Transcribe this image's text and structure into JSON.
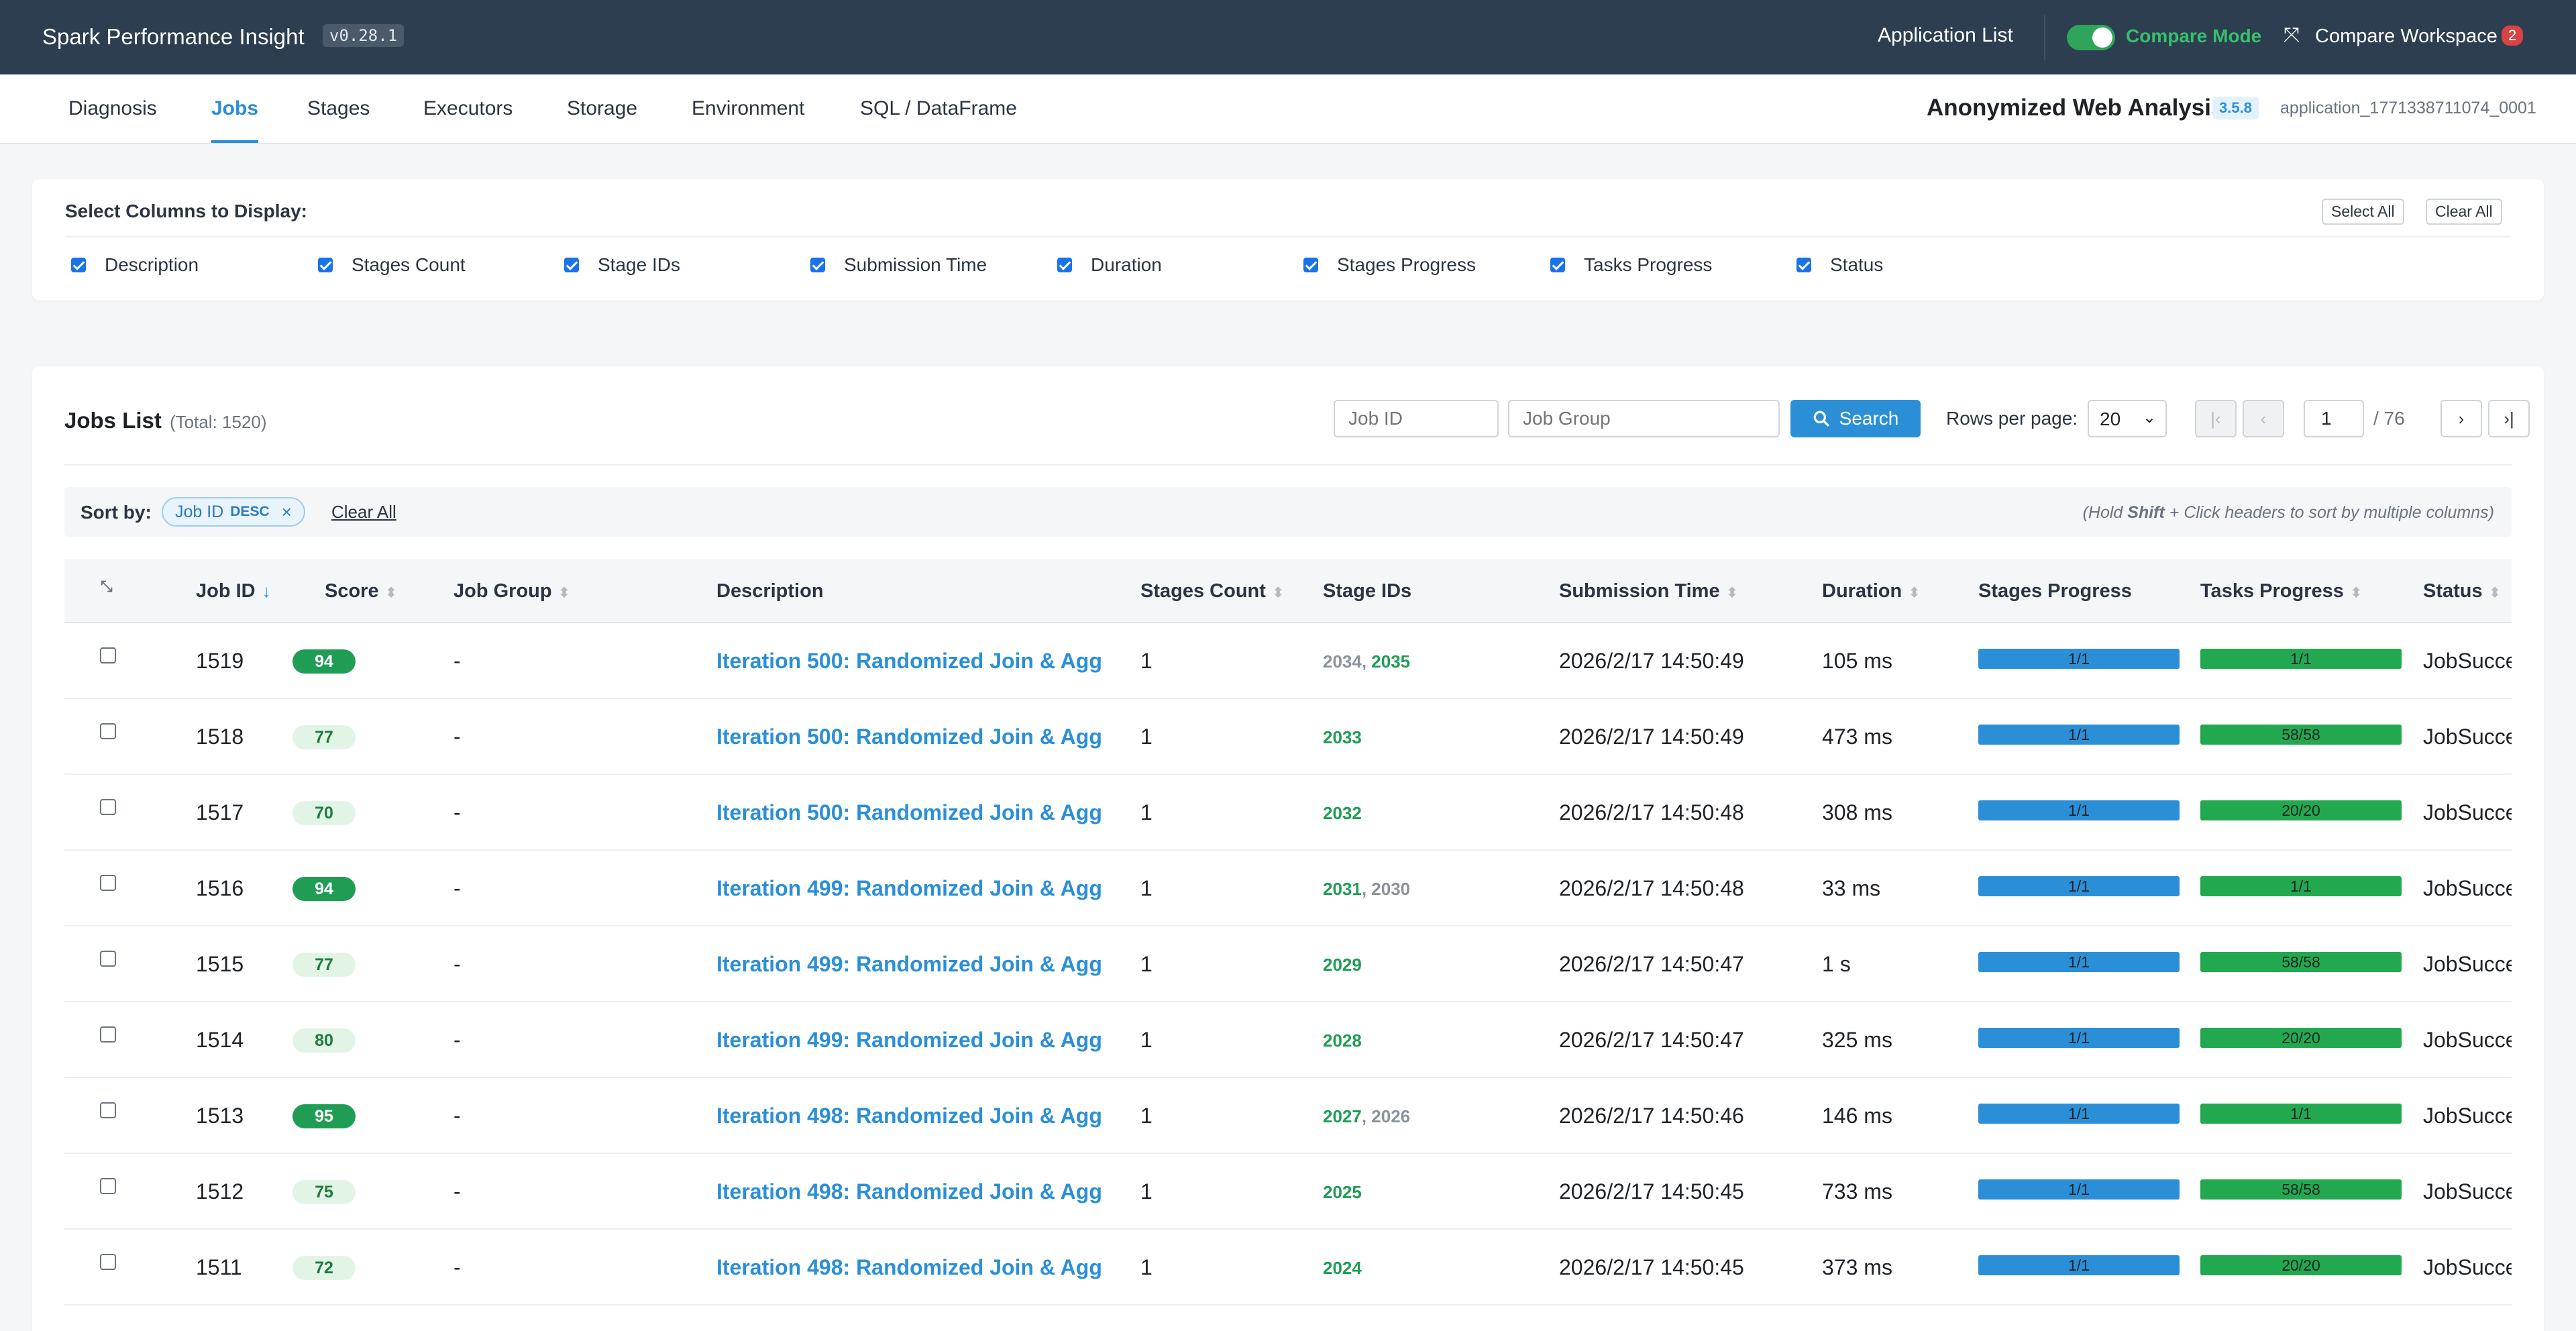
{
  "topbar": {
    "brand": "Spark Performance Insight",
    "version": "v0.28.1",
    "app_list": "Application List",
    "compare_mode": "Compare Mode",
    "compare_workspace": "Compare Workspace",
    "compare_workspace_count": "2",
    "compare_mode_on": true
  },
  "nav": {
    "tabs": [
      "Diagnosis",
      "Jobs",
      "Stages",
      "Executors",
      "Storage",
      "Environment",
      "SQL / DataFrame"
    ],
    "active": "Jobs",
    "app_name": "Anonymized Web Analysis",
    "spark_version": "3.5.8",
    "app_id": "application_1771338711074_0001"
  },
  "columns_panel": {
    "title": "Select Columns to Display:",
    "select_all": "Select All",
    "clear_all": "Clear All",
    "options": [
      "Description",
      "Stages Count",
      "Stage IDs",
      "Submission Time",
      "Duration",
      "Stages Progress",
      "Tasks Progress",
      "Status"
    ]
  },
  "jobs": {
    "title": "Jobs List",
    "total": "(Total: 1520)",
    "job_id_placeholder": "Job ID",
    "job_group_placeholder": "Job Group",
    "search_label": "Search",
    "rows_per_page_label": "Rows per page:",
    "rows_per_page": "20",
    "page": "1",
    "page_total": "/ 76",
    "sort": {
      "label": "Sort by:",
      "chip_field": "Job ID",
      "chip_dir": "DESC",
      "clear_all": "Clear All",
      "hint_prefix": "(Hold ",
      "hint_key": "Shift",
      "hint_suffix": " + Click headers to sort by multiple columns)"
    },
    "headers": {
      "job_id": "Job ID",
      "score": "Score",
      "job_group": "Job Group",
      "description": "Description",
      "stages_count": "Stages Count",
      "stage_ids": "Stage IDs",
      "submission_time": "Submission Time",
      "duration": "Duration",
      "stages_progress": "Stages Progress",
      "tasks_progress": "Tasks Progress",
      "status": "Status"
    },
    "rows": [
      {
        "job_id": "1519",
        "score": "94",
        "score_level": "high",
        "job_group": "-",
        "description": "Iteration 500: Randomized Join & Agg",
        "stages_count": "1",
        "stage_ids": [
          {
            "id": "2034",
            "state": "gray"
          },
          {
            "id": "2035",
            "state": "green"
          }
        ],
        "submission_time": "2026/2/17 14:50:49",
        "duration": "105 ms",
        "stages_progress": "1/1",
        "tasks_progress": "1/1",
        "status": "JobSucceed"
      },
      {
        "job_id": "1518",
        "score": "77",
        "score_level": "mid",
        "job_group": "-",
        "description": "Iteration 500: Randomized Join & Agg",
        "stages_count": "1",
        "stage_ids": [
          {
            "id": "2033",
            "state": "green"
          }
        ],
        "submission_time": "2026/2/17 14:50:49",
        "duration": "473 ms",
        "stages_progress": "1/1",
        "tasks_progress": "58/58",
        "status": "JobSucceed"
      },
      {
        "job_id": "1517",
        "score": "70",
        "score_level": "mid",
        "job_group": "-",
        "description": "Iteration 500: Randomized Join & Agg",
        "stages_count": "1",
        "stage_ids": [
          {
            "id": "2032",
            "state": "green"
          }
        ],
        "submission_time": "2026/2/17 14:50:48",
        "duration": "308 ms",
        "stages_progress": "1/1",
        "tasks_progress": "20/20",
        "status": "JobSucceed"
      },
      {
        "job_id": "1516",
        "score": "94",
        "score_level": "high",
        "job_group": "-",
        "description": "Iteration 499: Randomized Join & Agg",
        "stages_count": "1",
        "stage_ids": [
          {
            "id": "2031",
            "state": "green"
          },
          {
            "id": "2030",
            "state": "gray"
          }
        ],
        "submission_time": "2026/2/17 14:50:48",
        "duration": "33 ms",
        "stages_progress": "1/1",
        "tasks_progress": "1/1",
        "status": "JobSucceed"
      },
      {
        "job_id": "1515",
        "score": "77",
        "score_level": "mid",
        "job_group": "-",
        "description": "Iteration 499: Randomized Join & Agg",
        "stages_count": "1",
        "stage_ids": [
          {
            "id": "2029",
            "state": "green"
          }
        ],
        "submission_time": "2026/2/17 14:50:47",
        "duration": "1 s",
        "stages_progress": "1/1",
        "tasks_progress": "58/58",
        "status": "JobSucceed"
      },
      {
        "job_id": "1514",
        "score": "80",
        "score_level": "mid",
        "job_group": "-",
        "description": "Iteration 499: Randomized Join & Agg",
        "stages_count": "1",
        "stage_ids": [
          {
            "id": "2028",
            "state": "green"
          }
        ],
        "submission_time": "2026/2/17 14:50:47",
        "duration": "325 ms",
        "stages_progress": "1/1",
        "tasks_progress": "20/20",
        "status": "JobSucceed"
      },
      {
        "job_id": "1513",
        "score": "95",
        "score_level": "high",
        "job_group": "-",
        "description": "Iteration 498: Randomized Join & Agg",
        "stages_count": "1",
        "stage_ids": [
          {
            "id": "2027",
            "state": "green"
          },
          {
            "id": "2026",
            "state": "gray"
          }
        ],
        "submission_time": "2026/2/17 14:50:46",
        "duration": "146 ms",
        "stages_progress": "1/1",
        "tasks_progress": "1/1",
        "status": "JobSucceed"
      },
      {
        "job_id": "1512",
        "score": "75",
        "score_level": "mid",
        "job_group": "-",
        "description": "Iteration 498: Randomized Join & Agg",
        "stages_count": "1",
        "stage_ids": [
          {
            "id": "2025",
            "state": "green"
          }
        ],
        "submission_time": "2026/2/17 14:50:45",
        "duration": "733 ms",
        "stages_progress": "1/1",
        "tasks_progress": "58/58",
        "status": "JobSucceed"
      },
      {
        "job_id": "1511",
        "score": "72",
        "score_level": "mid",
        "job_group": "-",
        "description": "Iteration 498: Randomized Join & Agg",
        "stages_count": "1",
        "stage_ids": [
          {
            "id": "2024",
            "state": "green"
          }
        ],
        "submission_time": "2026/2/17 14:50:45",
        "duration": "373 ms",
        "stages_progress": "1/1",
        "tasks_progress": "20/20",
        "status": "JobSucceed"
      }
    ]
  }
}
